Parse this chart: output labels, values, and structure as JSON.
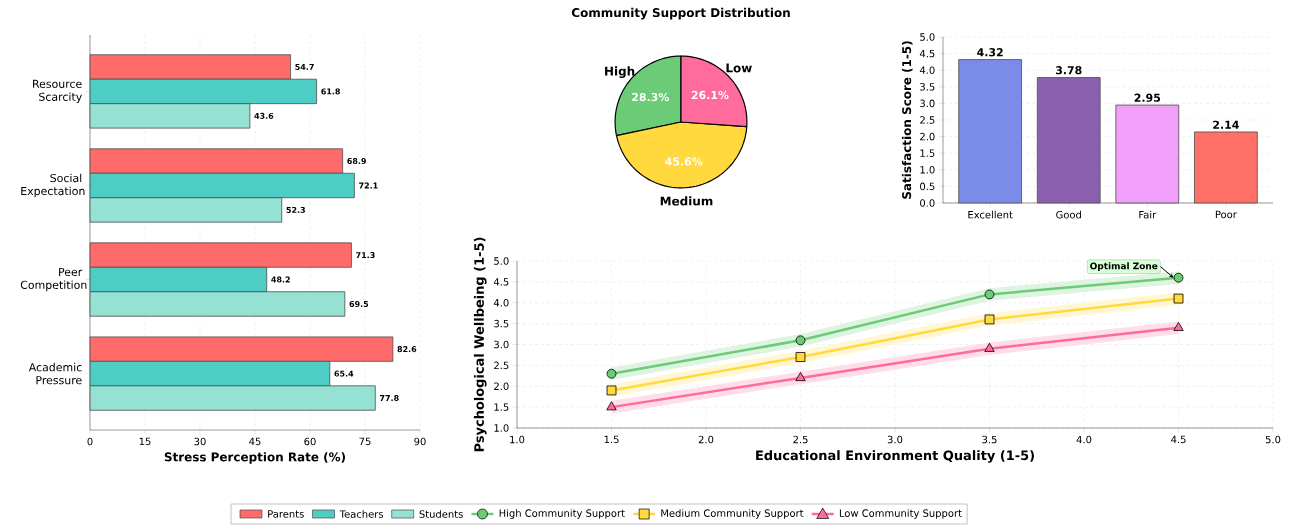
{
  "chart_data": [
    {
      "type": "bar",
      "orientation": "horizontal",
      "categories": [
        "Resource Scarcity",
        "Social Expectation",
        "Peer Competition",
        "Academic Pressure"
      ],
      "xlabel": "Stress Perception Rate (%)",
      "xlim": [
        0,
        90
      ],
      "xticks": [
        0,
        15,
        30,
        45,
        60,
        75,
        90
      ],
      "grid": "x",
      "data_labels": true,
      "legend": "bottom",
      "series": [
        {
          "name": "Parents",
          "color": "#ff6b6b",
          "values": [
            54.7,
            68.9,
            71.3,
            82.6
          ]
        },
        {
          "name": "Teachers",
          "color": "#4ecdc4",
          "values": [
            61.8,
            72.1,
            48.2,
            65.4
          ]
        },
        {
          "name": "Students",
          "color": "#95e1d3",
          "values": [
            43.6,
            52.3,
            69.5,
            77.8
          ]
        }
      ]
    },
    {
      "type": "pie",
      "title": "Community Support Distribution",
      "categories": [
        "High",
        "Medium",
        "Low"
      ],
      "values": [
        28.3,
        45.6,
        26.1
      ],
      "value_labels": [
        "28.3%",
        "45.6%",
        "26.1%"
      ],
      "colors": [
        "#6bcb77",
        "#ffd93d",
        "#ff6b9d"
      ]
    },
    {
      "type": "bar",
      "categories": [
        "Excellent",
        "Good",
        "Fair",
        "Poor"
      ],
      "values": [
        4.32,
        3.78,
        2.95,
        2.14
      ],
      "colors": [
        "#7b8ce8",
        "#8a5fad",
        "#f0a0f8",
        "#ff7066"
      ],
      "ylabel": "Satisfaction Score (1-5)",
      "ylim": [
        0,
        5
      ],
      "yticks": [
        {
          "value": 0,
          "label": "0.0"
        },
        {
          "value": 0.5,
          "label": "0.5"
        },
        {
          "value": 1,
          "label": "1.0"
        },
        {
          "value": 1.5,
          "label": "1.5"
        },
        {
          "value": 2,
          "label": "2.0"
        },
        {
          "value": 2.5,
          "label": "2.5"
        },
        {
          "value": 3,
          "label": "3.0"
        },
        {
          "value": 3.5,
          "label": "3.5"
        },
        {
          "value": 4,
          "label": "4.0"
        },
        {
          "value": 4.5,
          "label": "4.5"
        },
        {
          "value": 5,
          "label": "5.0"
        }
      ],
      "grid": "y",
      "data_labels": true
    },
    {
      "type": "line",
      "x": [
        1.5,
        2.5,
        3.5,
        4.5
      ],
      "xlabel": "Educational Environment Quality (1-5)",
      "ylabel": "Psychological Wellbeing (1-5)",
      "xlim": [
        1,
        5
      ],
      "ylim": [
        1,
        5
      ],
      "xticks": [
        {
          "value": 1,
          "label": "1.0"
        },
        {
          "value": 1.5,
          "label": "1.5"
        },
        {
          "value": 2,
          "label": "2.0"
        },
        {
          "value": 2.5,
          "label": "2.5"
        },
        {
          "value": 3,
          "label": "3.0"
        },
        {
          "value": 3.5,
          "label": "3.5"
        },
        {
          "value": 4,
          "label": "4.0"
        },
        {
          "value": 4.5,
          "label": "4.5"
        },
        {
          "value": 5,
          "label": "5.0"
        }
      ],
      "yticks": [
        {
          "value": 1,
          "label": "1.0"
        },
        {
          "value": 1.5,
          "label": "1.5"
        },
        {
          "value": 2,
          "label": "2.0"
        },
        {
          "value": 2.5,
          "label": "2.5"
        },
        {
          "value": 3,
          "label": "3.0"
        },
        {
          "value": 3.5,
          "label": "3.5"
        },
        {
          "value": 4,
          "label": "4.0"
        },
        {
          "value": 4.5,
          "label": "4.5"
        },
        {
          "value": 5,
          "label": "5.0"
        }
      ],
      "grid": true,
      "legend": "bottom",
      "line_style": "solid",
      "annotations": [
        {
          "text": "Optimal Zone",
          "x": 4.5,
          "y": 4.6
        }
      ],
      "series": [
        {
          "name": "High Community Support",
          "color": "#6bcb77",
          "marker": "circle",
          "values": [
            2.3,
            3.1,
            4.2,
            4.6
          ],
          "lower": [
            2.15,
            2.95,
            4.05,
            4.45
          ],
          "upper": [
            2.45,
            3.25,
            4.35,
            4.75
          ]
        },
        {
          "name": "Medium Community Support",
          "color": "#ffd93d",
          "marker": "square",
          "values": [
            1.9,
            2.7,
            3.6,
            4.1
          ],
          "lower": [
            1.75,
            2.55,
            3.45,
            3.95
          ],
          "upper": [
            2.05,
            2.85,
            3.75,
            4.25
          ]
        },
        {
          "name": "Low Community Support",
          "color": "#ff6b9d",
          "marker": "triangle",
          "values": [
            1.5,
            2.2,
            2.9,
            3.4
          ],
          "lower": [
            1.35,
            2.05,
            2.75,
            3.25
          ],
          "upper": [
            1.65,
            2.35,
            3.05,
            3.55
          ]
        }
      ]
    }
  ]
}
